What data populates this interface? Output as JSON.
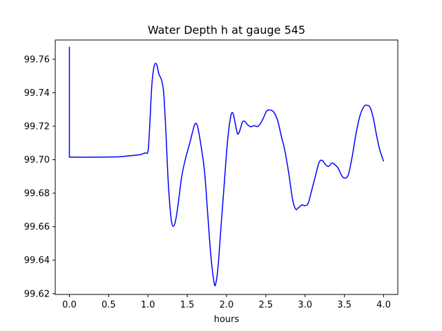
{
  "chart_data": {
    "type": "line",
    "title": "Water Depth h at gauge 545",
    "xlabel": "hours",
    "ylabel": "",
    "xlim": [
      -0.18,
      4.18
    ],
    "ylim": [
      99.6195,
      99.7715
    ],
    "xticks": [
      0.0,
      0.5,
      1.0,
      1.5,
      2.0,
      2.5,
      3.0,
      3.5,
      4.0
    ],
    "xtick_labels": [
      "0.0",
      "0.5",
      "1.0",
      "1.5",
      "2.0",
      "2.5",
      "3.0",
      "3.5",
      "4.0"
    ],
    "yticks": [
      99.62,
      99.64,
      99.66,
      99.68,
      99.7,
      99.72,
      99.74,
      99.76
    ],
    "ytick_labels": [
      "99.62",
      "99.64",
      "99.66",
      "99.68",
      "99.70",
      "99.72",
      "99.74",
      "99.76"
    ],
    "grid": false,
    "series": [
      {
        "color": "#0000ff",
        "x": [
          0.0,
          0.0,
          0.1,
          0.3,
          0.5,
          0.65,
          0.8,
          0.9,
          0.96,
          1.0,
          1.02,
          1.05,
          1.08,
          1.11,
          1.14,
          1.17,
          1.2,
          1.23,
          1.26,
          1.3,
          1.34,
          1.38,
          1.43,
          1.48,
          1.53,
          1.57,
          1.6,
          1.63,
          1.67,
          1.72,
          1.76,
          1.8,
          1.84,
          1.86,
          1.89,
          1.93,
          1.97,
          2.01,
          2.05,
          2.08,
          2.11,
          2.14,
          2.17,
          2.2,
          2.23,
          2.27,
          2.31,
          2.35,
          2.39,
          2.43,
          2.47,
          2.51,
          2.55,
          2.6,
          2.65,
          2.7,
          2.74,
          2.79,
          2.84,
          2.88,
          2.92,
          2.96,
          3.0,
          3.04,
          3.08,
          3.13,
          3.18,
          3.22,
          3.26,
          3.3,
          3.34,
          3.38,
          3.42,
          3.46,
          3.5,
          3.55,
          3.6,
          3.65,
          3.7,
          3.75,
          3.79,
          3.83,
          3.87,
          3.91,
          3.95,
          4.0
        ],
        "y": [
          99.7675,
          99.7015,
          99.7015,
          99.7015,
          99.7016,
          99.7018,
          99.7025,
          99.703,
          99.704,
          99.705,
          99.718,
          99.745,
          99.756,
          99.757,
          99.751,
          99.748,
          99.74,
          99.715,
          99.685,
          99.663,
          99.6615,
          99.672,
          99.69,
          99.701,
          99.7095,
          99.717,
          99.7215,
          99.72,
          99.71,
          99.693,
          99.668,
          99.643,
          99.627,
          99.6255,
          99.635,
          99.66,
          99.685,
          99.7095,
          99.725,
          99.728,
          99.722,
          99.7155,
          99.7175,
          99.7223,
          99.723,
          99.7208,
          99.7197,
          99.7203,
          99.7198,
          99.7215,
          99.725,
          99.729,
          99.7297,
          99.7285,
          99.7235,
          99.7135,
          99.706,
          99.6925,
          99.6765,
          99.6705,
          99.6715,
          99.673,
          99.6725,
          99.674,
          99.681,
          99.69,
          99.6985,
          99.6995,
          99.697,
          99.696,
          99.698,
          99.697,
          99.695,
          99.691,
          99.689,
          99.691,
          99.702,
          99.716,
          99.7265,
          99.7318,
          99.7325,
          99.731,
          99.7245,
          99.7145,
          99.706,
          99.699
        ]
      }
    ]
  }
}
